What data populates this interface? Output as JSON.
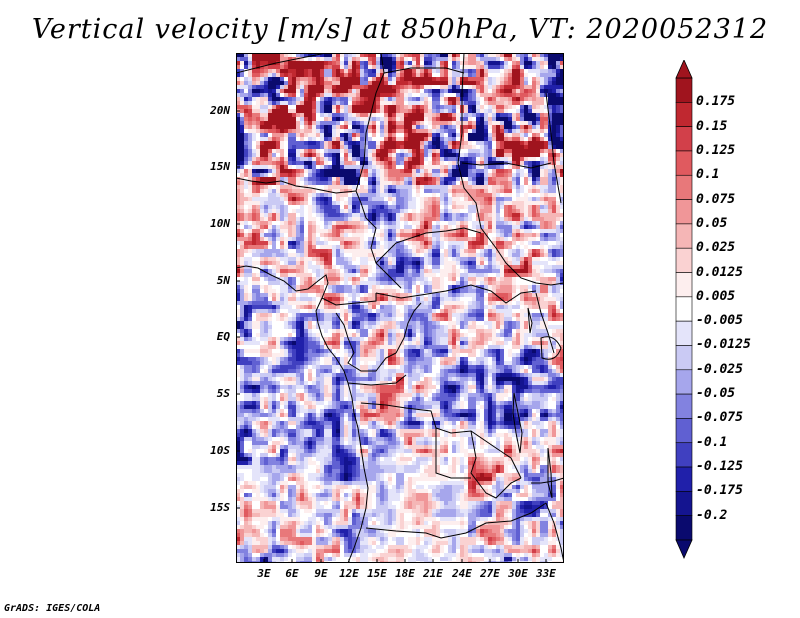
{
  "title": "Vertical velocity [m/s] at 850hPa, VT: 2020052312",
  "footer": "GrADS: IGES/COLA",
  "map": {
    "lat_labels": [
      "20N",
      "15N",
      "10N",
      "5N",
      "EQ",
      "5S",
      "10S",
      "15S"
    ],
    "lon_labels": [
      "3E",
      "6E",
      "9E",
      "12E",
      "15E",
      "18E",
      "21E",
      "24E",
      "27E",
      "30E",
      "33E"
    ]
  },
  "colorbar": {
    "levels": [
      "0.175",
      "0.15",
      "0.125",
      "0.1",
      "0.075",
      "0.05",
      "0.025",
      "0.0125",
      "0.005",
      "-0.005",
      "-0.0125",
      "-0.025",
      "-0.05",
      "-0.075",
      "-0.1",
      "-0.125",
      "-0.175",
      "-0.2"
    ],
    "colors": [
      "#a0141e",
      "#c02830",
      "#d2404a",
      "#e05a5f",
      "#e8787a",
      "#f09698",
      "#f5b6b6",
      "#fad2d2",
      "#fdeeee",
      "#ffffff",
      "#e4e4fa",
      "#cacaf4",
      "#a6a6ec",
      "#8282e0",
      "#6060d2",
      "#4040c0",
      "#2020aa",
      "#141490",
      "#0a0a6e"
    ]
  },
  "chart_data": {
    "type": "heatmap",
    "variable": "Vertical velocity [m/s] at 850hPa",
    "valid_time": "2020052312",
    "x_range": [
      0,
      34
    ],
    "y_range": [
      -20,
      25
    ],
    "contour_levels": [
      -0.2,
      -0.175,
      -0.125,
      -0.1,
      -0.075,
      -0.05,
      -0.025,
      -0.0125,
      -0.005,
      0.005,
      0.0125,
      0.025,
      0.05,
      0.075,
      0.1,
      0.125,
      0.15,
      0.175
    ]
  }
}
